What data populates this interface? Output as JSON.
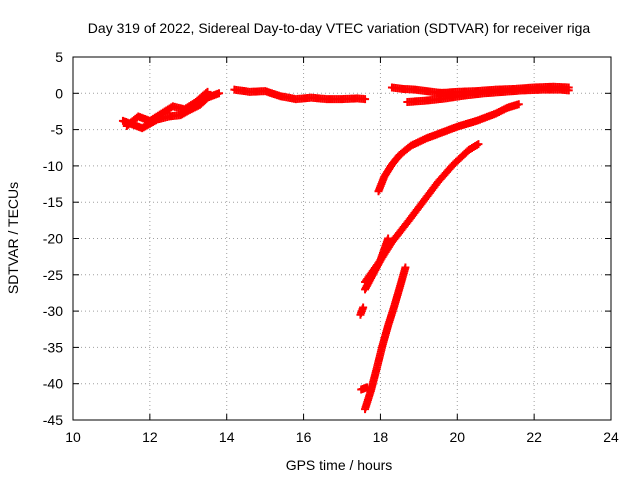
{
  "chart_data": {
    "type": "scatter",
    "title": "Day 319 of 2022, Sidereal Day-to-day VTEC variation (SDTVAR) for receiver riga",
    "xlabel": "GPS time / hours",
    "ylabel": "SDTVAR / TECUs",
    "xlim": [
      10,
      24
    ],
    "ylim": [
      -45,
      5
    ],
    "xticks": [
      10,
      12,
      14,
      16,
      18,
      20,
      22,
      24
    ],
    "yticks": [
      5,
      0,
      -5,
      -10,
      -15,
      -20,
      -25,
      -30,
      -35,
      -40,
      -45
    ],
    "grid": true,
    "marker": "+",
    "marker_color": "#ff0000",
    "segments": [
      {
        "x": [
          11.3,
          11.5,
          11.8,
          12.0,
          12.2,
          12.5,
          12.8,
          13.0,
          13.3,
          13.5,
          13.8
        ],
        "y": [
          -3.8,
          -4.2,
          -4.8,
          -4.2,
          -3.6,
          -3.2,
          -3.0,
          -2.4,
          -1.6,
          -0.6,
          0.0
        ]
      },
      {
        "x": [
          11.4,
          11.7,
          12.0,
          12.3,
          12.6,
          12.9,
          13.2,
          13.5
        ],
        "y": [
          -4.5,
          -3.2,
          -3.8,
          -2.8,
          -1.8,
          -2.2,
          -1.2,
          0.2
        ]
      },
      {
        "x": [
          14.2,
          14.6,
          15.0,
          15.4,
          15.8,
          16.2,
          16.6,
          17.0,
          17.4,
          17.6
        ],
        "y": [
          0.5,
          0.2,
          0.3,
          -0.4,
          -0.8,
          -0.6,
          -0.8,
          -0.8,
          -0.7,
          -0.8
        ]
      },
      {
        "x": [
          18.3,
          18.6,
          18.9,
          19.2,
          19.5,
          19.8
        ],
        "y": [
          0.8,
          0.6,
          0.5,
          0.3,
          0.1,
          0.0
        ]
      },
      {
        "x": [
          18.7,
          19.2,
          19.7,
          20.2,
          20.7,
          21.2,
          21.7,
          22.2,
          22.7,
          22.9
        ],
        "y": [
          -1.2,
          -1.0,
          -0.7,
          -0.3,
          0.0,
          0.2,
          0.4,
          0.5,
          0.5,
          0.4
        ]
      },
      {
        "x": [
          19.5,
          20.0,
          20.5,
          21.0,
          21.5,
          22.0,
          22.5,
          22.9
        ],
        "y": [
          0.0,
          0.2,
          0.3,
          0.5,
          0.6,
          0.8,
          0.9,
          0.8
        ]
      },
      {
        "x": [
          17.95,
          18.1,
          18.3,
          18.5,
          18.8,
          19.2,
          19.6,
          20.0,
          20.5,
          21.0,
          21.3,
          21.6
        ],
        "y": [
          -13.5,
          -11.5,
          -9.8,
          -8.5,
          -7.2,
          -6.2,
          -5.4,
          -4.6,
          -3.8,
          -2.8,
          -2.0,
          -1.5
        ]
      },
      {
        "x": [
          17.6,
          17.8,
          18.0,
          18.3,
          18.7,
          19.1,
          19.5,
          19.9,
          20.3,
          20.55
        ],
        "y": [
          -27.0,
          -25.0,
          -23.0,
          -20.5,
          -17.8,
          -15.0,
          -12.2,
          -9.8,
          -7.8,
          -7.0
        ]
      },
      {
        "x": [
          17.6,
          17.8,
          18.0,
          18.2
        ],
        "y": [
          -26.0,
          -24.5,
          -23.0,
          -20.0
        ]
      },
      {
        "x": [
          17.48,
          17.55
        ],
        "y": [
          -30.5,
          -29.5
        ]
      },
      {
        "x": [
          17.6,
          17.75,
          17.9,
          18.05,
          18.2,
          18.35,
          18.5,
          18.65
        ],
        "y": [
          -43.5,
          -41.0,
          -38.0,
          -34.8,
          -32.0,
          -29.5,
          -26.8,
          -24.0
        ]
      },
      {
        "x": [
          17.5,
          17.65
        ],
        "y": [
          -40.8,
          -40.5
        ]
      }
    ]
  }
}
